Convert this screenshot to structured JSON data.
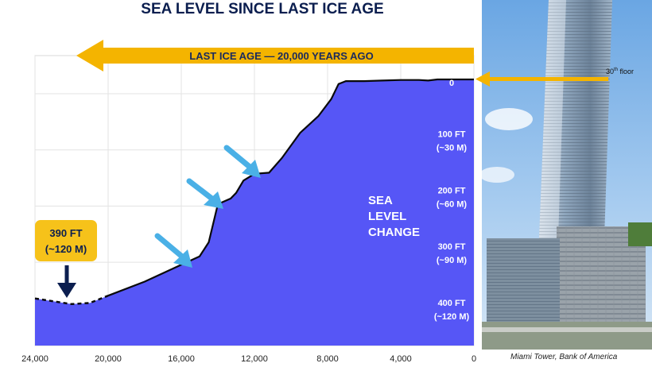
{
  "chart_data": {
    "type": "area",
    "title": "SEA LEVEL SINCE LAST ICE AGE",
    "banner": "LAST ICE AGE  —  20,000 YEARS AGO",
    "x_ticks": [
      "24,000",
      "20,000",
      "16,000",
      "12,000",
      "8,000",
      "4,000",
      "0"
    ],
    "xlim": [
      24000,
      0
    ],
    "ylim": [
      0,
      470
    ],
    "y_ticks": [
      {
        "value": 0,
        "lines": [
          "0"
        ]
      },
      {
        "value": 100,
        "lines": [
          "100 FT",
          "(~30 M)"
        ]
      },
      {
        "value": 200,
        "lines": [
          "200 FT",
          "(~60 M)"
        ]
      },
      {
        "value": 300,
        "lines": [
          "300 FT",
          "(~90 M)"
        ]
      },
      {
        "value": 400,
        "lines": [
          "400 FT",
          "(~120 M)"
        ]
      }
    ],
    "x": [
      24000,
      22000,
      21000,
      20000,
      18000,
      16000,
      15000,
      14500,
      14000,
      13300,
      13000,
      12600,
      12000,
      11200,
      10500,
      9500,
      8500,
      7800,
      7400,
      7000,
      6000,
      5000,
      4000,
      3000,
      2500,
      2000,
      1000,
      0
    ],
    "y": [
      390,
      400,
      398,
      385,
      360,
      330,
      315,
      290,
      222,
      212,
      202,
      180,
      168,
      166,
      140,
      95,
      65,
      35,
      8,
      3,
      3,
      2,
      1,
      1,
      2,
      0,
      0,
      0
    ],
    "series_name": "",
    "annotation": [
      "SEA",
      "LEVEL",
      "CHANGE"
    ],
    "callout": [
      "390 FT",
      "(~120 M)"
    ],
    "photo_caption": "Miami Tower, Bank of America",
    "floor_label": "30",
    "floor_label_sup": "th",
    "floor_label_rest": " floor",
    "colors": {
      "fill": "#5656f6",
      "line": "#0a0a0a",
      "banner": "#f4b400",
      "arrow": "#4ab0e6",
      "title": "#0b1e4f",
      "callout_bg": "#f6c21a",
      "sky": "#7fb4e8"
    }
  }
}
